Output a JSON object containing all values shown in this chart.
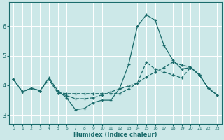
{
  "xlabel": "Humidex (Indice chaleur)",
  "bg_color": "#cce8e8",
  "grid_color": "#ffffff",
  "line_color": "#1a6b6b",
  "xlim": [
    -0.5,
    23.5
  ],
  "ylim": [
    2.7,
    6.8
  ],
  "xticks": [
    0,
    1,
    2,
    3,
    4,
    5,
    6,
    7,
    8,
    9,
    10,
    11,
    12,
    13,
    14,
    15,
    16,
    17,
    18,
    19,
    20,
    21,
    22,
    23
  ],
  "yticks": [
    3,
    4,
    5,
    6
  ],
  "line1_x": [
    0,
    1,
    2,
    3,
    4,
    5,
    6,
    7,
    8,
    9,
    10,
    11,
    12,
    13,
    14,
    15,
    16,
    17,
    18,
    19,
    20,
    21,
    22,
    23
  ],
  "line1_y": [
    4.2,
    3.78,
    3.9,
    3.82,
    4.25,
    3.82,
    3.58,
    3.18,
    3.22,
    3.42,
    3.5,
    3.5,
    3.9,
    4.7,
    6.0,
    6.38,
    6.2,
    5.35,
    4.85,
    4.55,
    4.6,
    4.35,
    3.9,
    3.68
  ],
  "line2_x": [
    0,
    1,
    2,
    3,
    4,
    5,
    6,
    7,
    8,
    9,
    10,
    11,
    12,
    13,
    14,
    15,
    16,
    17,
    18,
    19,
    20,
    21,
    22,
    23
  ],
  "line2_y": [
    4.2,
    3.78,
    3.9,
    3.82,
    4.2,
    3.75,
    3.65,
    3.55,
    3.55,
    3.58,
    3.68,
    3.78,
    3.88,
    3.98,
    4.08,
    4.78,
    4.55,
    4.45,
    4.35,
    4.25,
    4.6,
    4.35,
    3.9,
    3.68
  ],
  "line3_x": [
    0,
    1,
    2,
    3,
    4,
    5,
    6,
    7,
    8,
    9,
    10,
    11,
    12,
    13,
    14,
    15,
    16,
    17,
    18,
    19,
    20,
    21,
    22,
    23
  ],
  "line3_y": [
    4.2,
    3.78,
    3.9,
    3.82,
    4.2,
    3.75,
    3.72,
    3.72,
    3.72,
    3.72,
    3.72,
    3.72,
    3.72,
    3.88,
    4.08,
    4.28,
    4.45,
    4.6,
    4.78,
    4.68,
    4.62,
    4.35,
    3.9,
    3.68
  ],
  "line1_style": "-",
  "line2_style": "--",
  "line3_style": "--"
}
